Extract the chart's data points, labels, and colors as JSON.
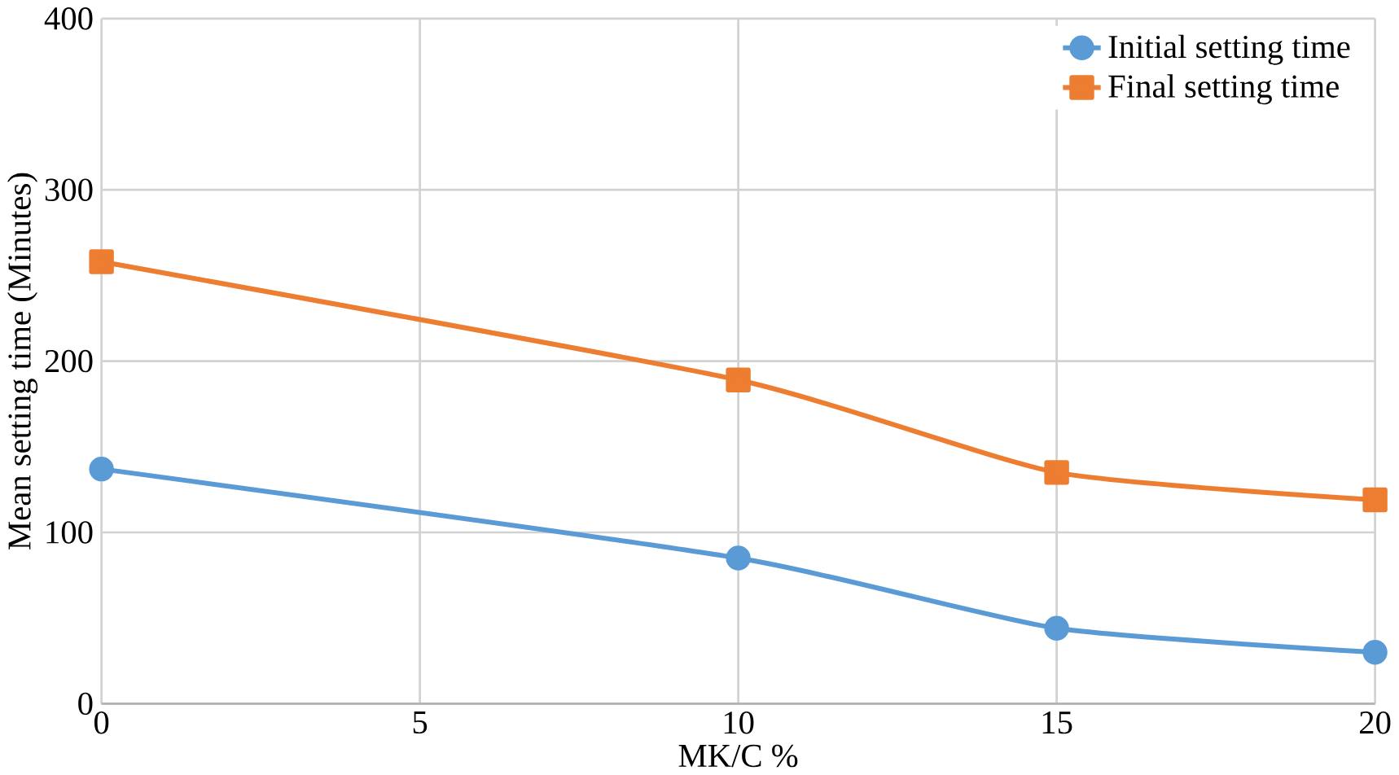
{
  "chart_data": {
    "type": "line",
    "xlabel": "MK/C %",
    "ylabel": "Mean setting time (Minutes)",
    "x": [
      0,
      10,
      15,
      20
    ],
    "series": [
      {
        "name": "Initial setting time",
        "color": "#5b9bd5",
        "marker": "circle",
        "values": [
          137,
          85,
          44,
          30
        ]
      },
      {
        "name": "Final setting time",
        "color": "#ed7d31",
        "marker": "square",
        "values": [
          258,
          189,
          135,
          119
        ]
      }
    ],
    "xlim": [
      0,
      20
    ],
    "xticks": [
      0,
      5,
      10,
      15,
      20
    ],
    "ylim": [
      0,
      400
    ],
    "yticks": [
      0,
      100,
      200,
      300,
      400
    ],
    "grid": true,
    "legend": "top right",
    "line_style": "solid"
  }
}
